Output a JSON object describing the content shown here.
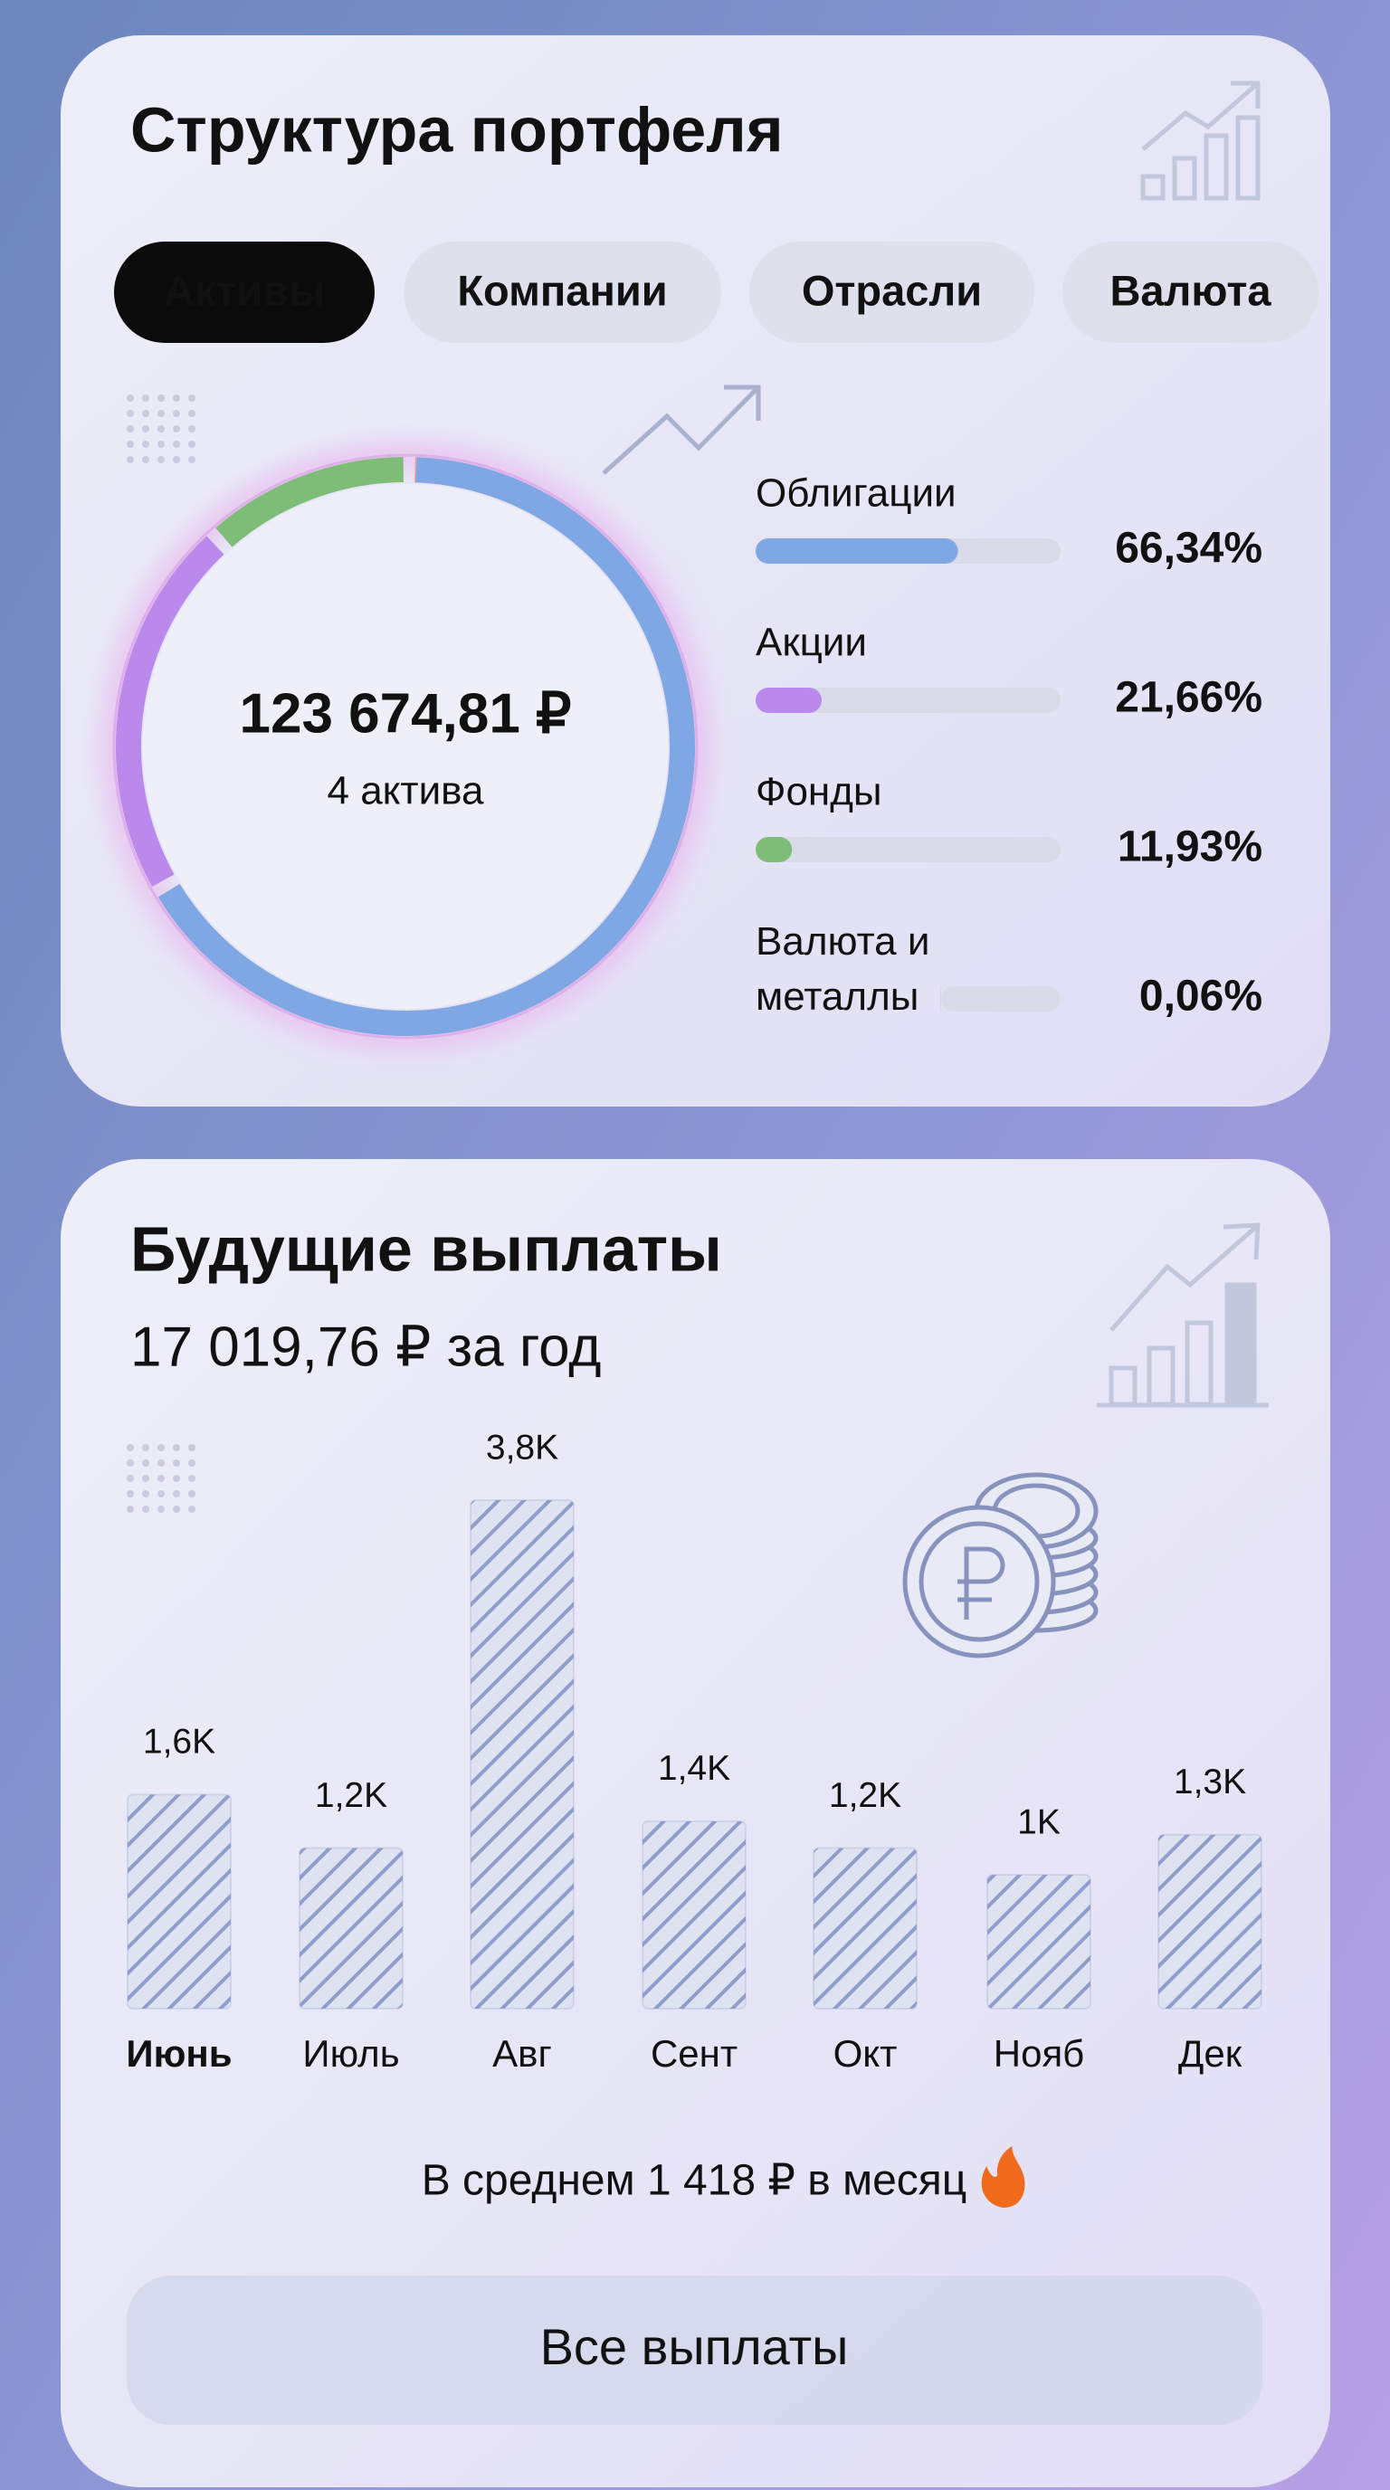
{
  "portfolio": {
    "title": "Структура портфеля",
    "tabs": [
      "Активы",
      "Компании",
      "Отрасли",
      "Валюта"
    ],
    "active_tab": 0,
    "chart": {
      "type": "donut",
      "total": "123 674,81 ₽",
      "subtitle": "4 актива",
      "categories": [
        "Облигации",
        "Акции",
        "Фонды",
        "Валюта и металлы"
      ],
      "values": [
        66.34,
        21.66,
        11.93,
        0.06
      ],
      "value_labels": [
        "66,34%",
        "21,66%",
        "11,93%",
        "0,06%"
      ],
      "colors": [
        "#7ea7e4",
        "#b98aec",
        "#7dbd78",
        "#e39a9e"
      ]
    }
  },
  "payments": {
    "title": "Будущие выплаты",
    "subtitle": "17 019,76 ₽ за год",
    "chart": {
      "type": "bar",
      "categories": [
        "Июнь",
        "Июль",
        "Авг",
        "Сент",
        "Окт",
        "Нояб",
        "Дек"
      ],
      "values": [
        1600,
        1200,
        3800,
        1400,
        1200,
        1000,
        1300
      ],
      "value_labels": [
        "1,6K",
        "1,2K",
        "3,8K",
        "1,4K",
        "1,2K",
        "1K",
        "1,3K"
      ],
      "highlight_index": 0,
      "color": "#8e9dcc"
    },
    "average": "В среднем 1 418 ₽ в месяц",
    "button": "Все выплаты"
  }
}
